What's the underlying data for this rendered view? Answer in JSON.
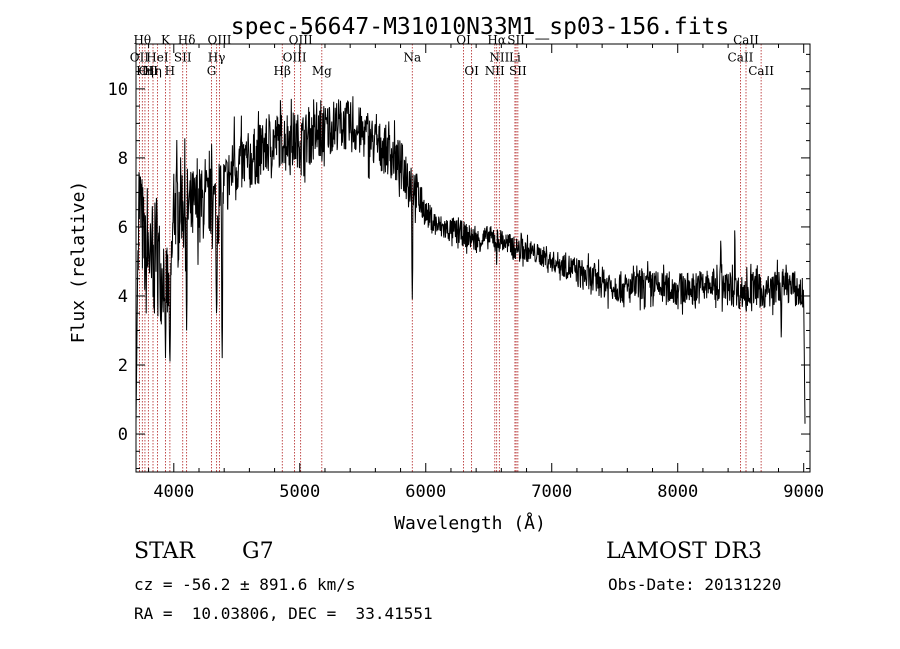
{
  "chart_data": {
    "type": "line",
    "title": "spec-56647-M31010N33M1_sp03-156.fits",
    "xlabel": "Wavelength (Å)",
    "ylabel": "Flux (relative)",
    "xlim": [
      3700,
      9050
    ],
    "ylim": [
      -1.1,
      11.3
    ],
    "xticks": [
      4000,
      5000,
      6000,
      7000,
      8000,
      9000
    ],
    "yticks": [
      0,
      2,
      4,
      6,
      8,
      10
    ],
    "x_minor_step": 200,
    "y_minor_step": 0.5,
    "line_color": "#000000",
    "marker_color": "#b22222",
    "spectrum_nodes": [
      [
        3700,
        0.3
      ],
      [
        3720,
        7.0
      ],
      [
        3750,
        6.0
      ],
      [
        3780,
        4.8
      ],
      [
        3800,
        5.5
      ],
      [
        3830,
        4.2
      ],
      [
        3860,
        5.8
      ],
      [
        3900,
        4.5
      ],
      [
        3930,
        5.0
      ],
      [
        3950,
        4.2
      ],
      [
        3970,
        3.8
      ],
      [
        4000,
        6.5
      ],
      [
        4050,
        6.8
      ],
      [
        4100,
        6.6
      ],
      [
        4150,
        6.5
      ],
      [
        4200,
        6.7
      ],
      [
        4250,
        6.6
      ],
      [
        4300,
        6.8
      ],
      [
        4350,
        6.6
      ],
      [
        4400,
        7.2
      ],
      [
        4500,
        7.8
      ],
      [
        4600,
        7.9
      ],
      [
        4700,
        8.2
      ],
      [
        4800,
        8.5
      ],
      [
        4900,
        8.6
      ],
      [
        5000,
        8.5
      ],
      [
        5100,
        8.6
      ],
      [
        5200,
        8.8
      ],
      [
        5300,
        9.0
      ],
      [
        5400,
        8.9
      ],
      [
        5500,
        8.7
      ],
      [
        5600,
        8.4
      ],
      [
        5700,
        8.2
      ],
      [
        5800,
        7.8
      ],
      [
        5880,
        7.4
      ],
      [
        5950,
        6.8
      ],
      [
        6000,
        6.4
      ],
      [
        6100,
        6.0
      ],
      [
        6200,
        5.9
      ],
      [
        6300,
        5.8
      ],
      [
        6400,
        5.6
      ],
      [
        6500,
        5.7
      ],
      [
        6600,
        5.6
      ],
      [
        6700,
        5.4
      ],
      [
        6800,
        5.3
      ],
      [
        6900,
        5.2
      ],
      [
        7000,
        5.0
      ],
      [
        7100,
        4.9
      ],
      [
        7200,
        4.7
      ],
      [
        7300,
        4.5
      ],
      [
        7400,
        4.4
      ],
      [
        7500,
        4.3
      ],
      [
        7600,
        4.2
      ],
      [
        7700,
        4.3
      ],
      [
        7800,
        4.3
      ],
      [
        7900,
        4.2
      ],
      [
        8000,
        4.2
      ],
      [
        8100,
        4.2
      ],
      [
        8200,
        4.3
      ],
      [
        8300,
        4.3
      ],
      [
        8400,
        4.2
      ],
      [
        8500,
        4.1
      ],
      [
        8600,
        4.2
      ],
      [
        8700,
        4.1
      ],
      [
        8800,
        4.3
      ],
      [
        8900,
        4.3
      ],
      [
        9000,
        4.0
      ],
      [
        9010,
        0.3
      ]
    ],
    "spectrum_dips": [
      [
        3934,
        2.2
      ],
      [
        3969,
        1.8
      ],
      [
        4102,
        3.0
      ],
      [
        4300,
        3.0
      ],
      [
        4340,
        3.2
      ],
      [
        4384,
        2.2
      ],
      [
        5175,
        7.6
      ],
      [
        5893,
        3.9
      ],
      [
        6563,
        4.6
      ],
      [
        8498,
        3.8
      ],
      [
        8542,
        3.6
      ],
      [
        8662,
        3.7
      ],
      [
        8822,
        2.5
      ]
    ],
    "spectrum_spikes": [
      [
        3830,
        6.9
      ],
      [
        4300,
        8.4
      ],
      [
        4480,
        9.2
      ],
      [
        5190,
        9.8
      ],
      [
        5540,
        9.6
      ],
      [
        8342,
        5.9
      ],
      [
        8453,
        6.2
      ]
    ],
    "spectrum_noise_amplitude": [
      [
        3700,
        1.6
      ],
      [
        4000,
        1.3
      ],
      [
        4400,
        0.9
      ],
      [
        5000,
        0.8
      ],
      [
        5900,
        0.7
      ],
      [
        6000,
        0.4
      ],
      [
        7000,
        0.3
      ],
      [
        7200,
        0.45
      ],
      [
        8300,
        0.5
      ],
      [
        9000,
        0.5
      ]
    ],
    "lines": [
      {
        "wavelength": 3727,
        "label": "OII",
        "y": 10.8
      },
      {
        "wavelength": 3750,
        "label": "Hθ",
        "y": 11.3
      },
      {
        "wavelength": 3771,
        "label": "Hη",
        "y": 10.4
      },
      {
        "wavelength": 3798,
        "label": "OII",
        "y": 10.4
      },
      {
        "wavelength": 3835,
        "label": "Hη",
        "y": 10.4
      },
      {
        "wavelength": 3870,
        "label": "HeI",
        "y": 10.8
      },
      {
        "wavelength": 3934,
        "label": "K",
        "y": 11.3
      },
      {
        "wavelength": 3969,
        "label": "H",
        "y": 10.4
      },
      {
        "wavelength": 4071,
        "label": "SII",
        "y": 10.8
      },
      {
        "wavelength": 4102,
        "label": "Hδ",
        "y": 11.3
      },
      {
        "wavelength": 4300,
        "label": "G",
        "y": 10.4
      },
      {
        "wavelength": 4340,
        "label": "Hγ",
        "y": 10.8
      },
      {
        "wavelength": 4363,
        "label": "OIII",
        "y": 11.3
      },
      {
        "wavelength": 4861,
        "label": "Hβ",
        "y": 10.4
      },
      {
        "wavelength": 4959,
        "label": "OIII",
        "y": 10.8
      },
      {
        "wavelength": 5007,
        "label": "OIII",
        "y": 11.3
      },
      {
        "wavelength": 5175,
        "label": "Mg",
        "y": 10.4
      },
      {
        "wavelength": 5893,
        "label": "Na",
        "y": 10.8
      },
      {
        "wavelength": 6300,
        "label": "OI",
        "y": 11.3
      },
      {
        "wavelength": 6364,
        "label": "OI",
        "y": 10.4
      },
      {
        "wavelength": 6548,
        "label": "NII",
        "y": 10.4
      },
      {
        "wavelength": 6563,
        "label": "Hα",
        "y": 11.3
      },
      {
        "wavelength": 6584,
        "label": "NII",
        "y": 10.8
      },
      {
        "wavelength": 6708,
        "label": "Li",
        "y": 10.8
      },
      {
        "wavelength": 6717,
        "label": "SII",
        "y": 11.3
      },
      {
        "wavelength": 6731,
        "label": "SII",
        "y": 10.4
      },
      {
        "wavelength": 8498,
        "label": "CaII",
        "y": 10.8
      },
      {
        "wavelength": 8542,
        "label": "CaII",
        "y": 11.3
      },
      {
        "wavelength": 8662,
        "label": "CaII",
        "y": 10.4
      }
    ]
  },
  "info": {
    "object_class": "STAR",
    "subclass": "G7",
    "survey": "LAMOST DR3",
    "cz": "cz = -56.2 ± 891.6 km/s",
    "obs_date": "Obs-Date: 20131220",
    "coords": "RA =  10.03806, DEC =  33.41551"
  }
}
